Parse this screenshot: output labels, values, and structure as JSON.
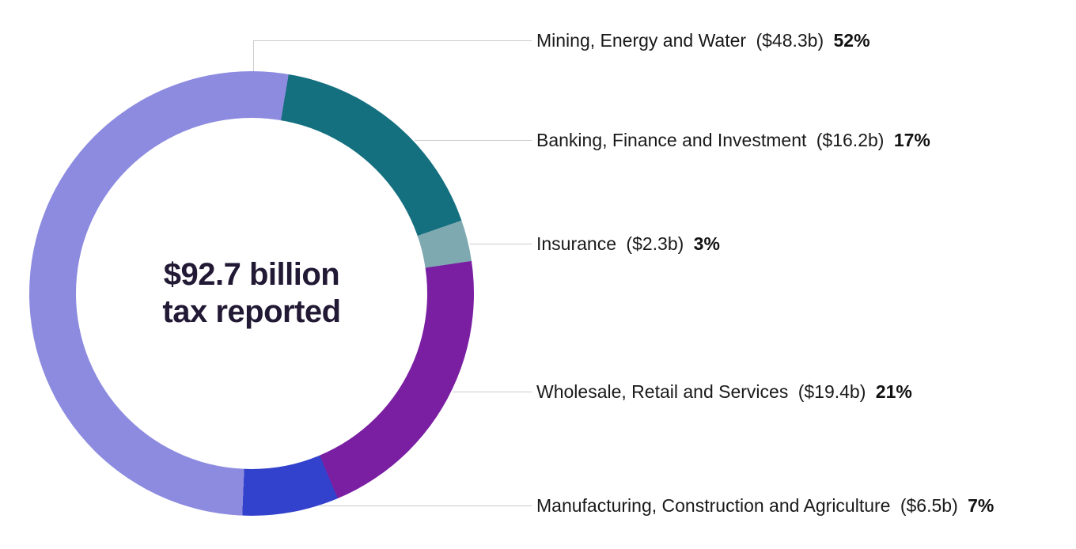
{
  "page": {
    "background_color": "#ffffff"
  },
  "chart_data": {
    "type": "pie",
    "subtype": "donut",
    "title": "$92.7 billion tax reported",
    "center_label": {
      "line1": "$92.7 billion",
      "line2": "tax reported"
    },
    "total_billions": 92.7,
    "segments": [
      {
        "label": "Mining, Energy and Water",
        "amount_text": "($48.3b)",
        "percent_text": "52%",
        "amount_billions": 48.3,
        "percent": 52,
        "color": "#8c8be0"
      },
      {
        "label": "Banking, Finance and Investment",
        "amount_text": "($16.2b)",
        "percent_text": "17%",
        "amount_billions": 16.2,
        "percent": 17,
        "color": "#14707f"
      },
      {
        "label": "Insurance",
        "amount_text": "($2.3b)",
        "percent_text": "3%",
        "amount_billions": 2.3,
        "percent": 3,
        "color": "#7fa9b1"
      },
      {
        "label": "Wholesale, Retail and Services",
        "amount_text": "($19.4b)",
        "percent_text": "21%",
        "amount_billions": 19.4,
        "percent": 21,
        "color": "#7a1fa2"
      },
      {
        "label": "Manufacturing, Construction and Agriculture",
        "amount_text": "($6.5b)",
        "percent_text": "7%",
        "amount_billions": 6.5,
        "percent": 7,
        "color": "#3342cc"
      }
    ],
    "layout": {
      "start_angle_deg": 182.4,
      "direction": "clockwise",
      "legend_position": "right",
      "leader_line_color": "#cbcbcb",
      "center_text_color": "#221935",
      "grid": false
    }
  }
}
